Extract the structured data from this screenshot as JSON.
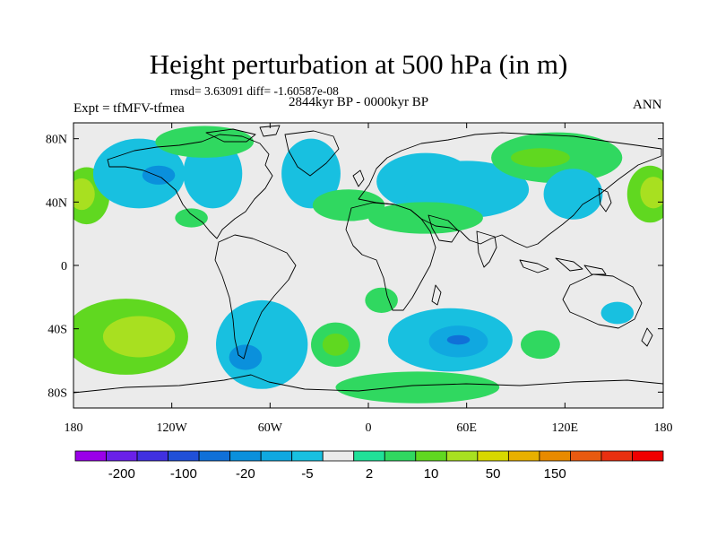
{
  "chart_data": {
    "type": "heatmap",
    "title": "Height perturbation at 500 hPa (in m)",
    "stats": "rmsd= 3.63091 diff= -1.60587e-08",
    "period": "2844kyr BP - 0000kyr BP",
    "experiment": "Expt = tfMFV-tfmea",
    "season": "ANN",
    "x_ticks": [
      "180",
      "120W",
      "60W",
      "0",
      "60E",
      "120E",
      "180"
    ],
    "y_ticks": [
      "80N",
      "40N",
      "0",
      "40S",
      "80S"
    ],
    "x_range": [
      -180,
      180
    ],
    "y_range": [
      -90,
      90
    ],
    "x_tick_values": [
      -180,
      -120,
      -60,
      0,
      60,
      120,
      180
    ],
    "y_tick_values": [
      80,
      40,
      0,
      -40,
      -80
    ],
    "colorbar": {
      "colors": [
        "#9a00e8",
        "#6a20e8",
        "#4030e0",
        "#2050d8",
        "#1070d8",
        "#0a90dc",
        "#10a8e0",
        "#18c0e0",
        "#ebebeb",
        "#20e098",
        "#30d860",
        "#60d820",
        "#a8e020",
        "#d8d800",
        "#e8b000",
        "#e88a00",
        "#e85a10",
        "#e83010",
        "#f00000"
      ],
      "labels": [
        {
          "text": "-200",
          "index": 1
        },
        {
          "text": "-100",
          "index": 3
        },
        {
          "text": "-20",
          "index": 5
        },
        {
          "text": "-5",
          "index": 7
        },
        {
          "text": "2",
          "index": 9
        },
        {
          "text": "10",
          "index": 11
        },
        {
          "text": "50",
          "index": 13
        },
        {
          "text": "150",
          "index": 15
        }
      ]
    },
    "anomaly_regions": [
      {
        "name": "green-north-pacific-west",
        "level": 11,
        "lon": -172,
        "lat": 44,
        "rlon": 14,
        "rlat": 18
      },
      {
        "name": "yellow-north-pacific-west",
        "level": 12,
        "lon": -175,
        "lat": 45,
        "rlon": 8,
        "rlat": 10
      },
      {
        "name": "cyan-north-pacific",
        "level": 7,
        "lon": -140,
        "lat": 58,
        "rlon": 28,
        "rlat": 22
      },
      {
        "name": "blue-alaska",
        "level": 5,
        "lon": -128,
        "lat": 57,
        "rlon": 10,
        "rlat": 6
      },
      {
        "name": "cyan-canada",
        "level": 7,
        "lon": -95,
        "lat": 58,
        "rlon": 18,
        "rlat": 22
      },
      {
        "name": "green-canadian-arctic",
        "level": 10,
        "lon": -100,
        "lat": 78,
        "rlon": 30,
        "rlat": 10
      },
      {
        "name": "cyan-north-atlantic",
        "level": 7,
        "lon": -35,
        "lat": 58,
        "rlon": 18,
        "rlat": 22
      },
      {
        "name": "green-north-atlantic",
        "level": 10,
        "lon": -12,
        "lat": 38,
        "rlon": 22,
        "rlat": 10
      },
      {
        "name": "cyan-europe",
        "level": 7,
        "lon": 35,
        "lat": 53,
        "rlon": 30,
        "rlat": 18
      },
      {
        "name": "cyan-siberia",
        "level": 7,
        "lon": 60,
        "lat": 48,
        "rlon": 38,
        "rlat": 18
      },
      {
        "name": "green-arctic-eurasia",
        "level": 10,
        "lon": 115,
        "lat": 68,
        "rlon": 40,
        "rlat": 16
      },
      {
        "name": "green-arctic-eurasia-core",
        "level": 11,
        "lon": 105,
        "lat": 68,
        "rlon": 18,
        "rlat": 6
      },
      {
        "name": "cyan-east-asia",
        "level": 7,
        "lon": 125,
        "lat": 45,
        "rlon": 18,
        "rlat": 16
      },
      {
        "name": "green-north-pacific-east",
        "level": 11,
        "lon": 172,
        "lat": 45,
        "rlon": 14,
        "rlat": 18
      },
      {
        "name": "yellow-north-pacific-east",
        "level": 12,
        "lon": 174,
        "lat": 46,
        "rlon": 8,
        "rlat": 10
      },
      {
        "name": "green-tropical-america",
        "level": 10,
        "lon": -108,
        "lat": 30,
        "rlon": 10,
        "rlat": 6
      },
      {
        "name": "green-arabia",
        "level": 10,
        "lon": 35,
        "lat": 30,
        "rlon": 35,
        "rlat": 10
      },
      {
        "name": "green-south-pacific",
        "level": 11,
        "lon": -148,
        "lat": -45,
        "rlon": 38,
        "rlat": 24
      },
      {
        "name": "yellow-south-pacific",
        "level": 12,
        "lon": -140,
        "lat": -45,
        "rlon": 22,
        "rlat": 13
      },
      {
        "name": "cyan-south-america",
        "level": 7,
        "lon": -65,
        "lat": -50,
        "rlon": 28,
        "rlat": 28
      },
      {
        "name": "blue-south-america",
        "level": 5,
        "lon": -75,
        "lat": -58,
        "rlon": 10,
        "rlat": 8
      },
      {
        "name": "green-south-atlantic",
        "level": 10,
        "lon": -20,
        "lat": -50,
        "rlon": 15,
        "rlat": 14
      },
      {
        "name": "yellow-south-atlantic",
        "level": 11,
        "lon": -20,
        "lat": -50,
        "rlon": 8,
        "rlat": 7
      },
      {
        "name": "green-south-atlantic-north",
        "level": 10,
        "lon": 8,
        "lat": -22,
        "rlon": 10,
        "rlat": 8
      },
      {
        "name": "cyan-indian-ocean",
        "level": 7,
        "lon": 50,
        "lat": -47,
        "rlon": 38,
        "rlat": 20
      },
      {
        "name": "blue-indian-ocean",
        "level": 6,
        "lon": 55,
        "lat": -48,
        "rlon": 18,
        "rlat": 10
      },
      {
        "name": "darkblue-indian-ocean",
        "level": 4,
        "lon": 55,
        "lat": -47,
        "rlon": 7,
        "rlat": 3
      },
      {
        "name": "green-south-indian",
        "level": 10,
        "lon": 105,
        "lat": -50,
        "rlon": 12,
        "rlat": 9
      },
      {
        "name": "green-antarctic",
        "level": 10,
        "lon": 30,
        "lat": -77,
        "rlon": 50,
        "rlat": 10
      },
      {
        "name": "cyan-south-pacific-east",
        "level": 7,
        "lon": 152,
        "lat": -30,
        "rlon": 10,
        "rlat": 7
      }
    ]
  }
}
